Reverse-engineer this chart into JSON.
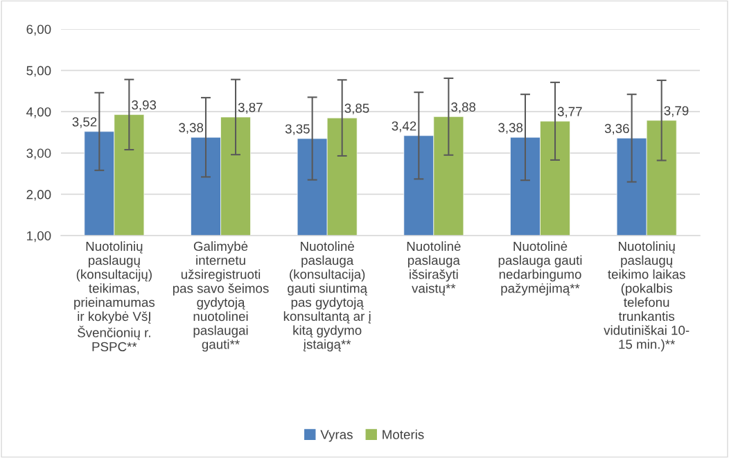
{
  "chart_data": {
    "type": "bar",
    "categories": [
      "Nuotolinių\npaslaugų\n(konsultacijų)\nteikimas,\nprieinamumas\nir kokybė VšĮ\nŠvenčionių r.\nPSPC**",
      "Galimybė\ninternetu\nužsiregistruoti\npas savo šeimos\ngydytoją\nnuotolinei\npaslaugai\ngauti**",
      "Nuotolinė\npaslauga\n(konsultacija)\ngauti siuntimą\npas gydytoją\nkonsultantą ar į\nkitą gydymo\nįstaigą**",
      "Nuotolinė\npaslauga\nišsirašyti\nvaistų**",
      "Nuotolinė\npaslauga gauti\nnedarbingumo\npažymėjimą**",
      "Nuotolinių\npaslaugų\nteikimo laikas\n(pokalbis\ntelefonu\ntrunkantis\nvidutiniškai 10-\n15 min.)**"
    ],
    "series": [
      {
        "name": "Vyras",
        "color": "#4f81bd",
        "values": [
          3.52,
          3.38,
          3.35,
          3.42,
          3.38,
          3.36
        ],
        "errors": [
          0.94,
          0.96,
          1.0,
          1.05,
          1.04,
          1.06
        ],
        "value_labels": [
          "3,52",
          "3,38",
          "3,35",
          "3,42",
          "3,38",
          "3,36"
        ]
      },
      {
        "name": "Moteris",
        "color": "#9bbb59",
        "values": [
          3.93,
          3.87,
          3.85,
          3.88,
          3.77,
          3.79
        ],
        "errors": [
          0.85,
          0.91,
          0.92,
          0.93,
          0.94,
          0.97
        ],
        "value_labels": [
          "3,93",
          "3,87",
          "3,85",
          "3,88",
          "3,77",
          "3,79"
        ]
      }
    ],
    "ylim": [
      1,
      6
    ],
    "yticks": [
      {
        "value": 1,
        "label": "1,00"
      },
      {
        "value": 2,
        "label": "2,00"
      },
      {
        "value": 3,
        "label": "3,00"
      },
      {
        "value": 4,
        "label": "4,00"
      },
      {
        "value": 5,
        "label": "5,00"
      },
      {
        "value": 6,
        "label": "6,00"
      }
    ],
    "grid": "y",
    "legend": "bottom"
  }
}
